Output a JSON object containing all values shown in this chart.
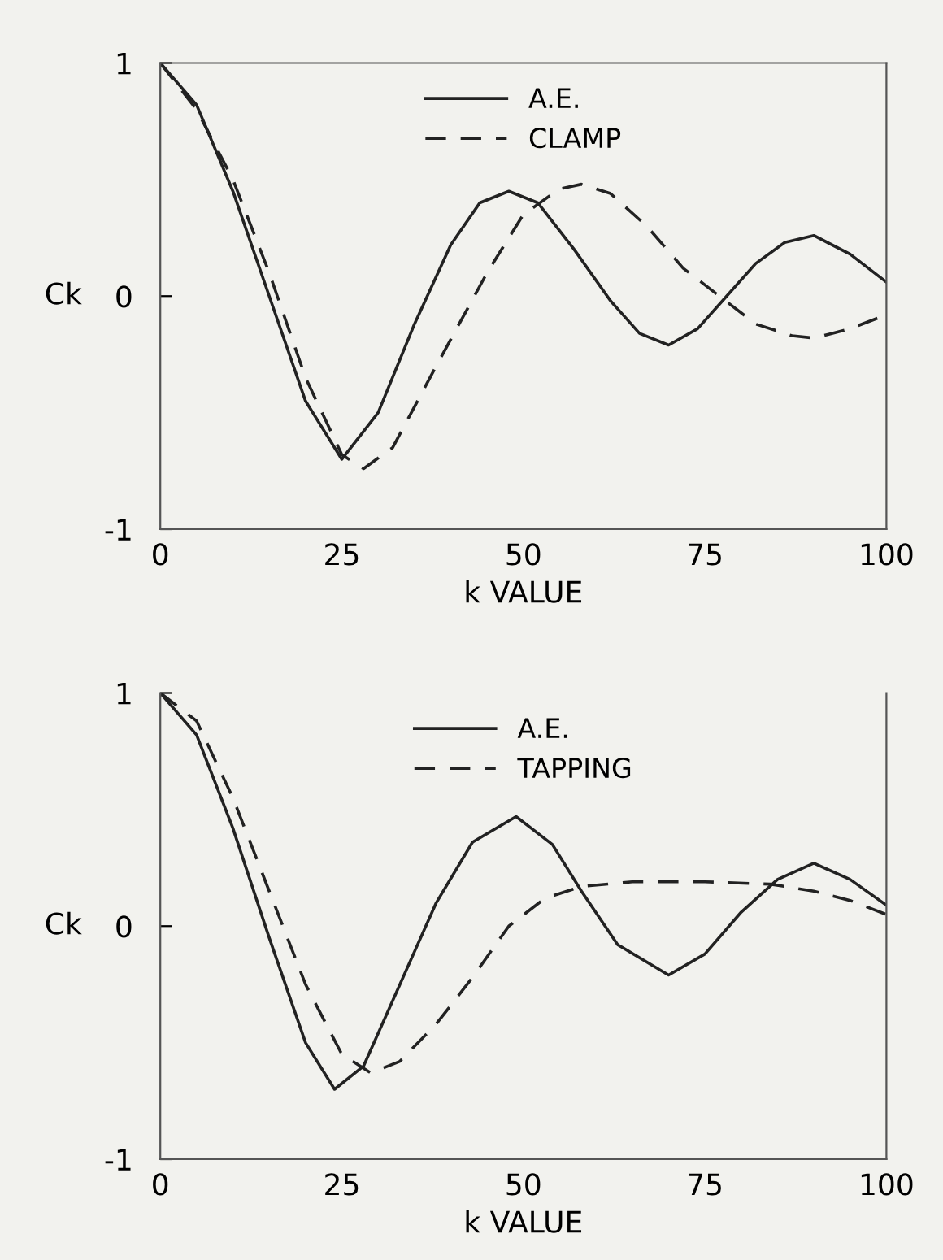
{
  "chart_data": [
    {
      "type": "line",
      "xlabel": "k VALUE",
      "ylabel": "Ck",
      "xlim": [
        0,
        100
      ],
      "ylim": [
        -1,
        1
      ],
      "xticks": [
        0,
        25,
        50,
        75,
        100
      ],
      "yticks": [
        -1,
        0,
        1
      ],
      "grid": false,
      "legend": "top",
      "series": [
        {
          "name": "A.E.",
          "color": "#222222",
          "line_style": "solid",
          "x": [
            0,
            5,
            10,
            15,
            20,
            25,
            30,
            35,
            40,
            44,
            48,
            52,
            57,
            62,
            66,
            70,
            74,
            78,
            82,
            86,
            90,
            95,
            100
          ],
          "values": [
            1,
            0.82,
            0.45,
            0.0,
            -0.45,
            -0.7,
            -0.5,
            -0.12,
            0.22,
            0.4,
            0.45,
            0.4,
            0.2,
            -0.02,
            -0.16,
            -0.21,
            -0.14,
            0.0,
            0.14,
            0.23,
            0.26,
            0.18,
            0.06
          ]
        },
        {
          "name": "CLAMP",
          "color": "#222222",
          "line_style": "dashed",
          "x": [
            0,
            5,
            10,
            15,
            20,
            25,
            28,
            32,
            38,
            45,
            50,
            55,
            58,
            62,
            67,
            72,
            77,
            82,
            87,
            90,
            95,
            100
          ],
          "values": [
            1,
            0.8,
            0.5,
            0.1,
            -0.35,
            -0.68,
            -0.74,
            -0.65,
            -0.3,
            0.1,
            0.35,
            0.46,
            0.48,
            0.44,
            0.3,
            0.12,
            0.0,
            -0.12,
            -0.17,
            -0.18,
            -0.14,
            -0.08
          ]
        }
      ]
    },
    {
      "type": "line",
      "xlabel": "k VALUE",
      "ylabel": "Ck",
      "xlim": [
        0,
        100
      ],
      "ylim": [
        -1,
        1
      ],
      "xticks": [
        0,
        25,
        50,
        75,
        100
      ],
      "yticks": [
        -1,
        0,
        1
      ],
      "grid": false,
      "legend": "top",
      "series": [
        {
          "name": "A.E.",
          "color": "#222222",
          "line_style": "solid",
          "x": [
            0,
            5,
            10,
            15,
            20,
            24,
            28,
            33,
            38,
            43,
            49,
            54,
            58,
            63,
            70,
            75,
            80,
            85,
            90,
            95,
            100
          ],
          "values": [
            1,
            0.82,
            0.42,
            -0.05,
            -0.5,
            -0.7,
            -0.6,
            -0.25,
            0.1,
            0.36,
            0.47,
            0.35,
            0.15,
            -0.08,
            -0.21,
            -0.12,
            0.06,
            0.2,
            0.27,
            0.2,
            0.09
          ]
        },
        {
          "name": "TAPPING",
          "color": "#222222",
          "line_style": "dashed",
          "x": [
            0,
            5,
            10,
            15,
            20,
            25,
            29,
            33,
            38,
            43,
            48,
            53,
            58,
            65,
            75,
            84,
            90,
            95,
            100
          ],
          "values": [
            1,
            0.88,
            0.55,
            0.15,
            -0.25,
            -0.55,
            -0.63,
            -0.58,
            -0.42,
            -0.22,
            0.0,
            0.12,
            0.17,
            0.19,
            0.19,
            0.18,
            0.15,
            0.11,
            0.05
          ]
        }
      ]
    }
  ]
}
